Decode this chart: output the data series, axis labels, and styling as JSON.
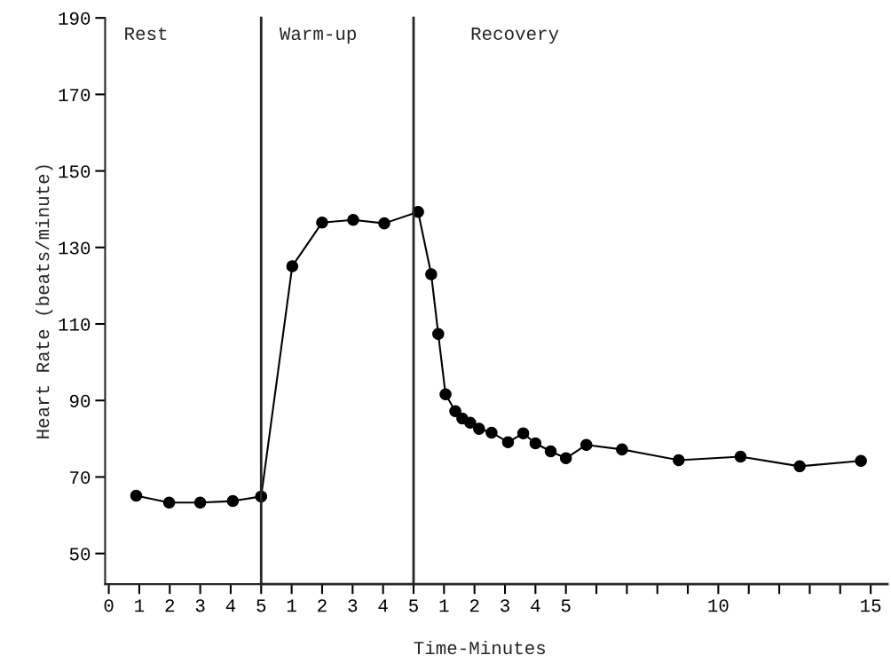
{
  "chart_data": [
    {
      "type": "line",
      "ylabel": "Heart Rate (beats/minute)",
      "annotations": [
        "Rest"
      ],
      "x": [
        0.9,
        1.98,
        3.0,
        4.07
      ],
      "series": [
        {
          "color": "#000000",
          "values": [
            65.1,
            63.3,
            63.3,
            63.7
          ]
        }
      ],
      "marker": "circle",
      "line_style": "solid",
      "xlim": [
        -0.12,
        5
      ],
      "ylim": [
        42,
        190
      ],
      "yticks": [
        50,
        70,
        90,
        110,
        130,
        150,
        170,
        190
      ],
      "xticks": [
        0,
        1,
        2,
        3,
        4,
        5
      ]
    },
    {
      "type": "line",
      "annotations": [
        "Warm-up"
      ],
      "tick_labels": "x",
      "x": [
        0,
        1.02,
        2.0,
        3.02,
        4.04
      ],
      "series": [
        {
          "color": "#000000",
          "values": [
            64.9,
            125.1,
            136.5,
            137.2,
            136.3
          ]
        }
      ],
      "marker": "circle",
      "line_style": "solid",
      "xlim": [
        0,
        5
      ],
      "ylim": [
        42,
        190
      ],
      "xticks": [
        1,
        2,
        3,
        4,
        5
      ]
    },
    {
      "type": "line",
      "xlabel": "Time-Minutes",
      "annotations": [
        "Recovery"
      ],
      "tick_labels": "x",
      "x": [
        0.15,
        0.58,
        0.81,
        1.05,
        1.37,
        1.6,
        1.86,
        2.15,
        2.56,
        3.1,
        3.6,
        4.0,
        4.5,
        5.0,
        5.67,
        6.84,
        8.7,
        10.73,
        12.67,
        14.68
      ],
      "series": [
        {
          "color": "#000000",
          "values": [
            139.3,
            123,
            107.4,
            91.6,
            87.2,
            85.3,
            84.2,
            82.6,
            81.6,
            79.1,
            81.4,
            78.8,
            76.7,
            74.9,
            78.4,
            77.2,
            74.4,
            75.3,
            72.8,
            74.2
          ]
        }
      ],
      "marker": "circle",
      "line_style": "solid",
      "xlim": [
        0,
        15.55
      ],
      "ylim": [
        42,
        190
      ],
      "xticks": [
        1,
        2,
        3,
        4,
        5,
        {
          "value": 6,
          "label": null
        },
        {
          "value": 7,
          "label": null
        },
        {
          "value": 8,
          "label": null
        },
        {
          "value": 9,
          "label": null
        },
        10,
        {
          "value": 11,
          "label": null
        },
        {
          "value": 12,
          "label": null
        },
        {
          "value": 13,
          "label": null
        },
        {
          "value": 14,
          "label": null
        },
        15
      ]
    }
  ]
}
